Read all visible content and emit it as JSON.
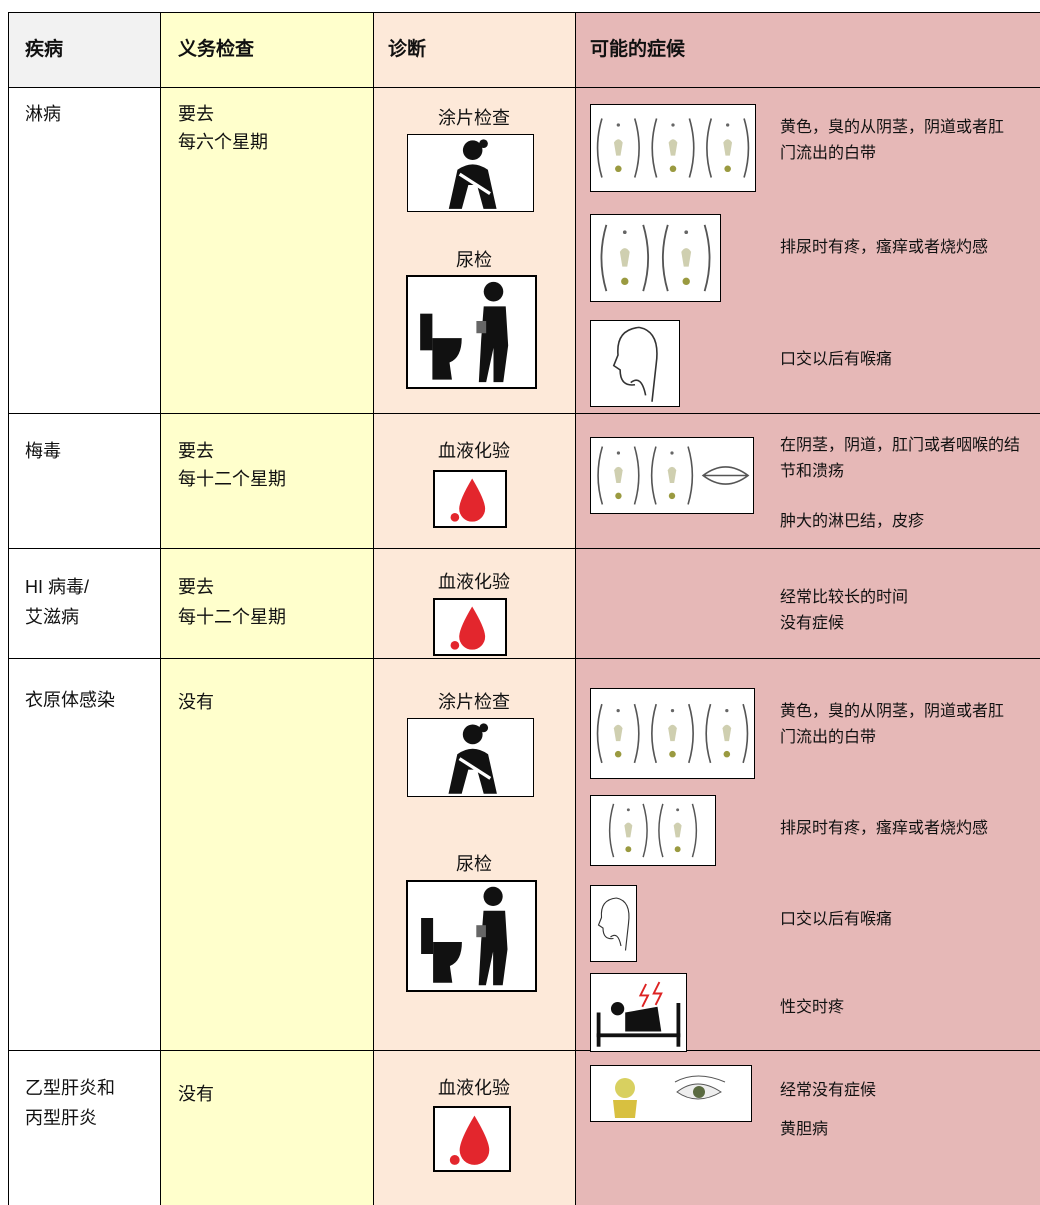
{
  "table": {
    "header": [
      "疾病",
      "义务检查",
      "诊断",
      "可能的症候"
    ],
    "rows": [
      {
        "disease": [
          "淋病"
        ],
        "checkup": [
          "要去",
          "每六个星期"
        ],
        "tests": [
          "涂片检查",
          "尿检"
        ],
        "symptoms": [
          "黄色，臭的从阴茎，阴道或者肛门流出的白带",
          "排尿时有疼，瘙痒或者烧灼感",
          "口交以后有喉痛"
        ]
      },
      {
        "disease": [
          "梅毒"
        ],
        "checkup": [
          "要去",
          "每十二个星期"
        ],
        "tests": [
          "血液化验"
        ],
        "symptoms": [
          "在阴茎，阴道，肛门或者咽喉的结节和溃疡",
          "肿大的淋巴结，皮疹"
        ]
      },
      {
        "disease": [
          "HI 病毒/",
          "艾滋病"
        ],
        "checkup": [
          "要去",
          "每十二个星期"
        ],
        "tests": [
          "血液化验"
        ],
        "symptoms": [
          "经常比较长的时间没有症候"
        ]
      },
      {
        "disease": [
          "衣原体感染"
        ],
        "checkup": [
          "没有"
        ],
        "tests": [
          "涂片检查",
          "尿检"
        ],
        "symptoms": [
          "黄色，臭的从阴茎，阴道或者肛门流出的白带",
          "排尿时有疼，瘙痒或者烧灼感",
          "口交以后有喉痛",
          "性交时疼"
        ]
      },
      {
        "disease": [
          "乙型肝炎和",
          "丙型肝炎"
        ],
        "checkup": [
          "没有"
        ],
        "tests": [
          "血液化验"
        ],
        "symptoms": [
          "经常没有症候",
          "黄胆病"
        ]
      }
    ]
  }
}
